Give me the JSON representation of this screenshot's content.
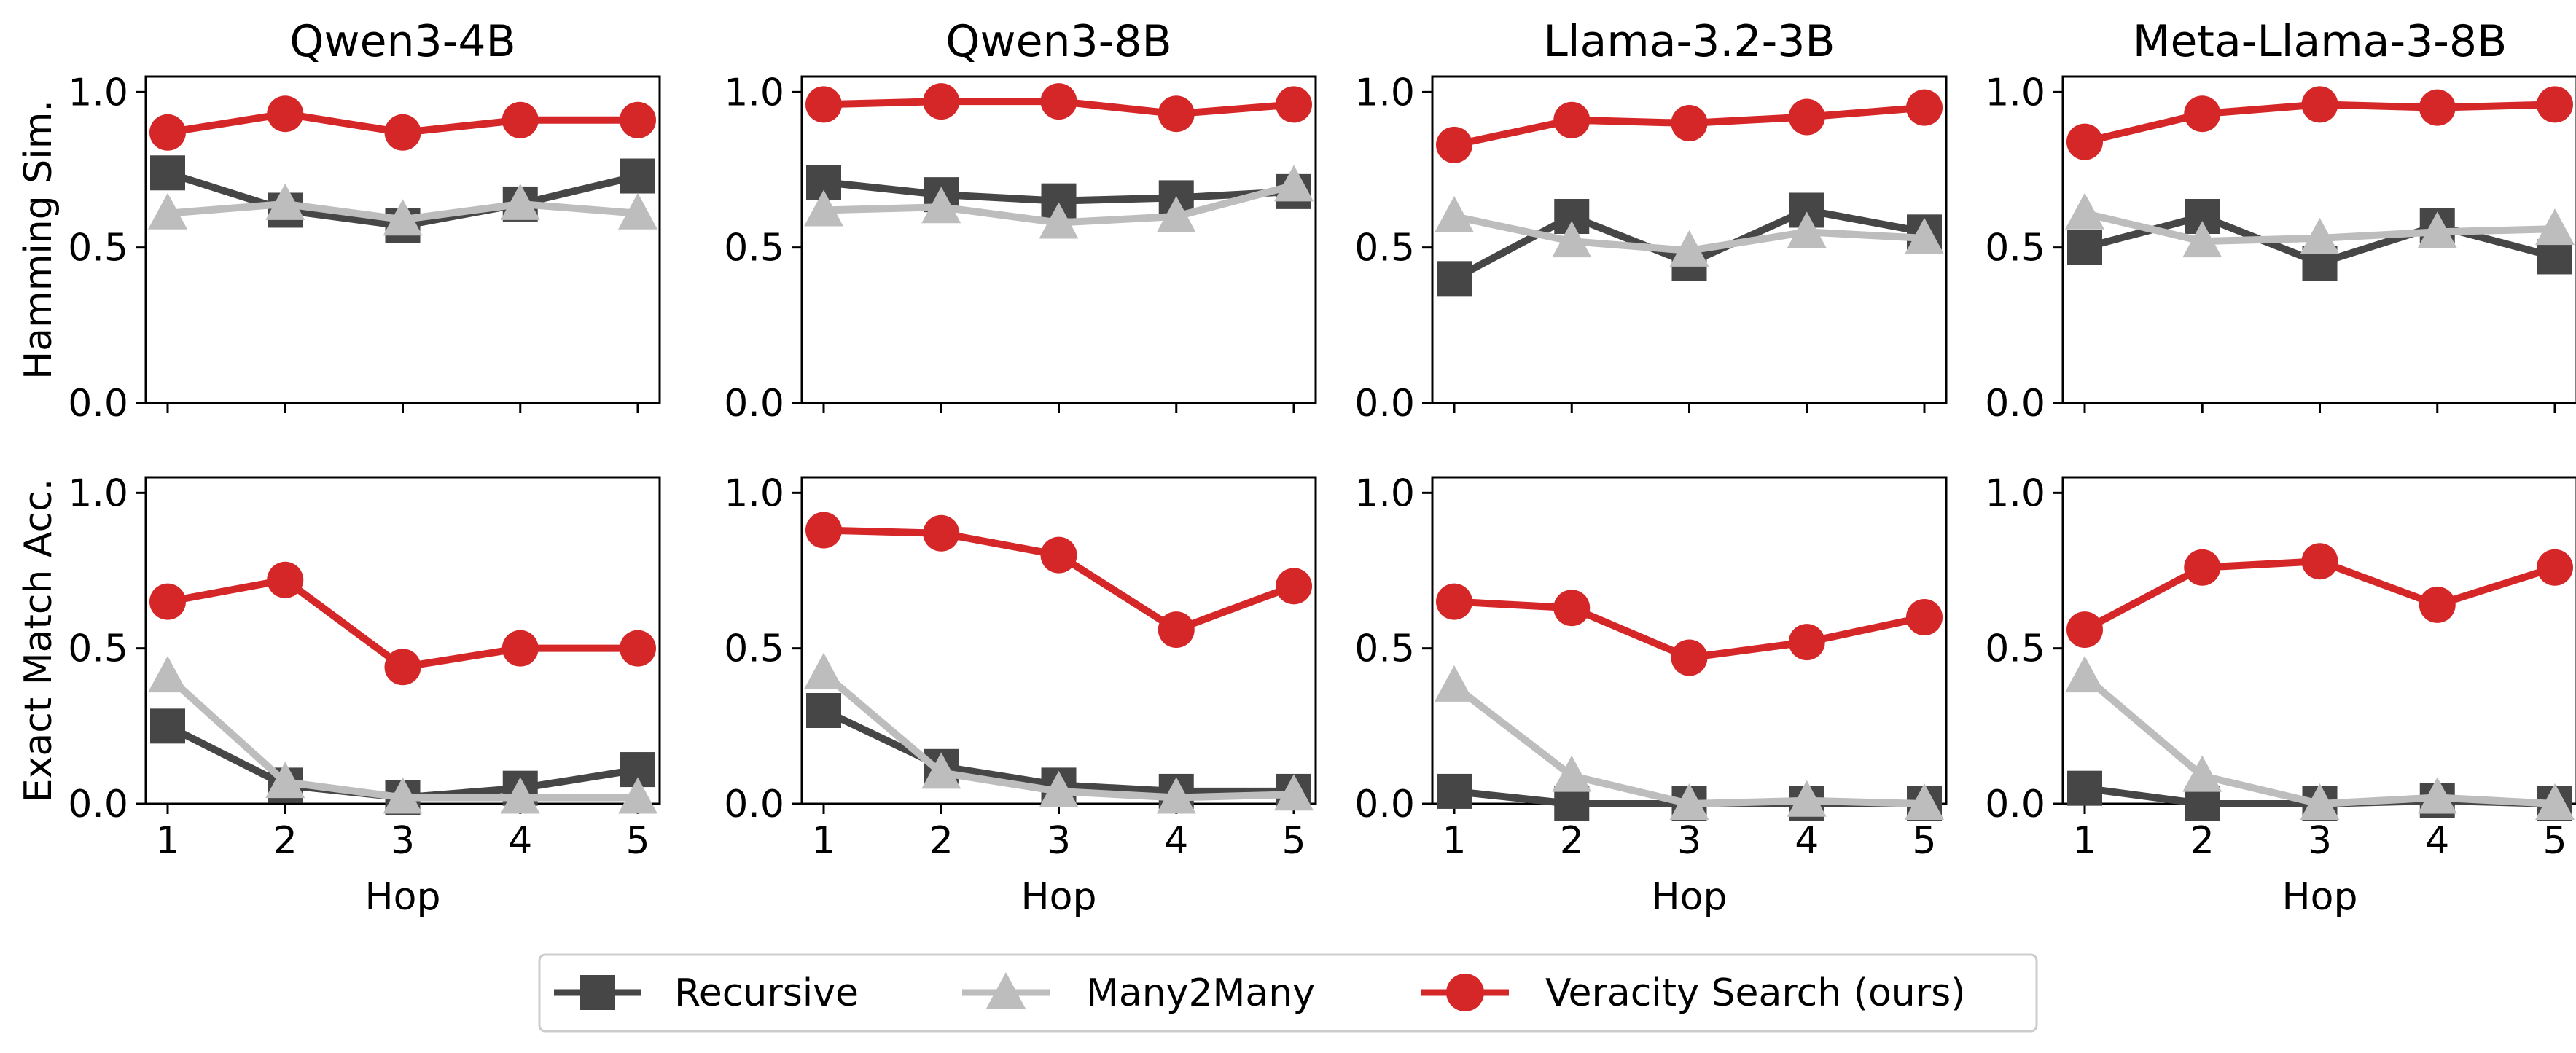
{
  "chart_data": {
    "type": "line",
    "x": [
      1,
      2,
      3,
      4,
      5
    ],
    "xlabel": "Hop",
    "row_labels": [
      "Hamming Sim.",
      "Exact Match Acc."
    ],
    "xtick_labels": [
      "1",
      "2",
      "3",
      "4",
      "5"
    ],
    "ytick_labels": [
      "0.0",
      "0.5",
      "1.0"
    ],
    "yticks": [
      0,
      0.5,
      1.0
    ],
    "ylim": [
      0,
      1.05
    ],
    "legend": {
      "position": "bottom-center",
      "entries": [
        "Recursive",
        "Many2Many",
        "Veracity Search (ours)"
      ]
    },
    "series_styles": [
      {
        "name": "Recursive",
        "color": "#464646",
        "marker": "square"
      },
      {
        "name": "Many2Many",
        "color": "#bdbdbd",
        "marker": "triangle"
      },
      {
        "name": "Veracity Search (ours)",
        "color": "#d62728",
        "marker": "circle"
      }
    ],
    "panels": [
      {
        "row": 0,
        "col": 0,
        "title": "Qwen3-4B",
        "series": [
          {
            "name": "Recursive",
            "values": [
              0.74,
              0.62,
              0.57,
              0.64,
              0.73
            ]
          },
          {
            "name": "Many2Many",
            "values": [
              0.61,
              0.64,
              0.59,
              0.64,
              0.61
            ]
          },
          {
            "name": "Veracity Search (ours)",
            "values": [
              0.87,
              0.93,
              0.87,
              0.91,
              0.91
            ]
          }
        ]
      },
      {
        "row": 0,
        "col": 1,
        "title": "Qwen3-8B",
        "series": [
          {
            "name": "Recursive",
            "values": [
              0.71,
              0.67,
              0.65,
              0.66,
              0.68
            ]
          },
          {
            "name": "Many2Many",
            "values": [
              0.62,
              0.63,
              0.58,
              0.6,
              0.7
            ]
          },
          {
            "name": "Veracity Search (ours)",
            "values": [
              0.96,
              0.97,
              0.97,
              0.93,
              0.96
            ]
          }
        ]
      },
      {
        "row": 0,
        "col": 2,
        "title": "Llama-3.2-3B",
        "series": [
          {
            "name": "Recursive",
            "values": [
              0.4,
              0.6,
              0.45,
              0.62,
              0.55
            ]
          },
          {
            "name": "Many2Many",
            "values": [
              0.6,
              0.52,
              0.49,
              0.55,
              0.53
            ]
          },
          {
            "name": "Veracity Search (ours)",
            "values": [
              0.83,
              0.91,
              0.9,
              0.92,
              0.95
            ]
          }
        ]
      },
      {
        "row": 0,
        "col": 3,
        "title": "Meta-Llama-3-8B",
        "series": [
          {
            "name": "Recursive",
            "values": [
              0.5,
              0.6,
              0.45,
              0.57,
              0.47
            ]
          },
          {
            "name": "Many2Many",
            "values": [
              0.61,
              0.52,
              0.53,
              0.55,
              0.56
            ]
          },
          {
            "name": "Veracity Search (ours)",
            "values": [
              0.84,
              0.93,
              0.96,
              0.95,
              0.96
            ]
          }
        ]
      },
      {
        "row": 1,
        "col": 0,
        "title": "",
        "series": [
          {
            "name": "Recursive",
            "values": [
              0.25,
              0.06,
              0.02,
              0.05,
              0.11
            ]
          },
          {
            "name": "Many2Many",
            "values": [
              0.41,
              0.07,
              0.02,
              0.02,
              0.02
            ]
          },
          {
            "name": "Veracity Search (ours)",
            "values": [
              0.65,
              0.72,
              0.44,
              0.5,
              0.5
            ]
          }
        ]
      },
      {
        "row": 1,
        "col": 1,
        "title": "",
        "series": [
          {
            "name": "Recursive",
            "values": [
              0.3,
              0.12,
              0.06,
              0.04,
              0.04
            ]
          },
          {
            "name": "Many2Many",
            "values": [
              0.42,
              0.1,
              0.04,
              0.02,
              0.03
            ]
          },
          {
            "name": "Veracity Search (ours)",
            "values": [
              0.88,
              0.87,
              0.8,
              0.56,
              0.7
            ]
          }
        ]
      },
      {
        "row": 1,
        "col": 2,
        "title": "",
        "series": [
          {
            "name": "Recursive",
            "values": [
              0.04,
              0.0,
              0.0,
              0.0,
              0.0
            ]
          },
          {
            "name": "Many2Many",
            "values": [
              0.38,
              0.09,
              0.0,
              0.01,
              0.0
            ]
          },
          {
            "name": "Veracity Search (ours)",
            "values": [
              0.65,
              0.63,
              0.47,
              0.52,
              0.6
            ]
          }
        ]
      },
      {
        "row": 1,
        "col": 3,
        "title": "",
        "series": [
          {
            "name": "Recursive",
            "values": [
              0.05,
              0.0,
              0.0,
              0.01,
              0.0
            ]
          },
          {
            "name": "Many2Many",
            "values": [
              0.41,
              0.09,
              0.0,
              0.02,
              0.0
            ]
          },
          {
            "name": "Veracity Search (ours)",
            "values": [
              0.56,
              0.76,
              0.78,
              0.64,
              0.76
            ]
          }
        ]
      }
    ]
  }
}
